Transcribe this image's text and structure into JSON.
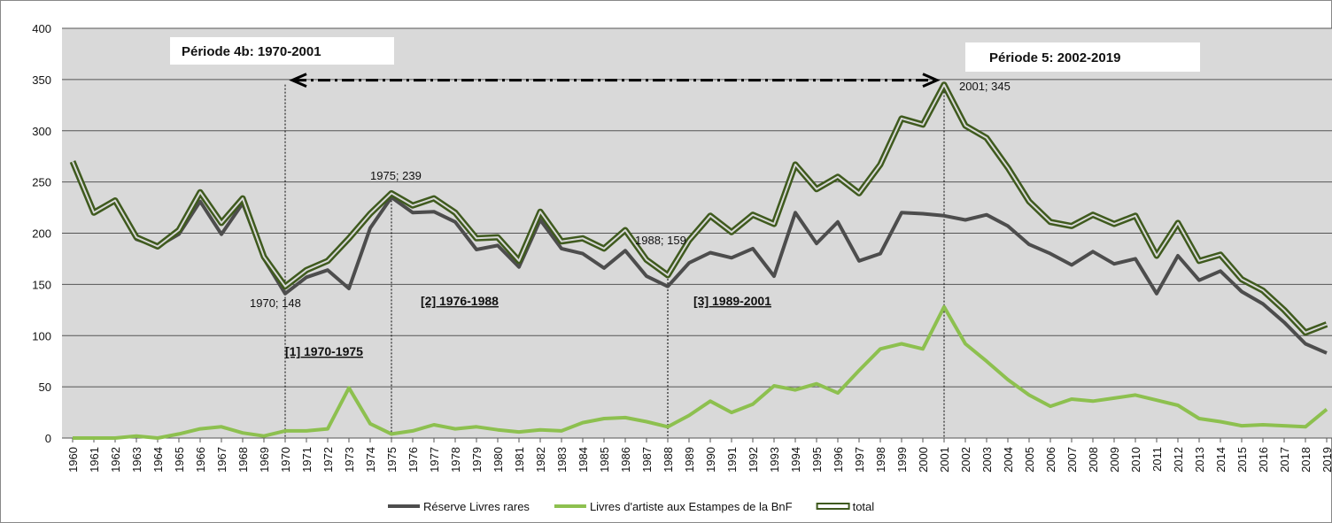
{
  "chart_data": {
    "type": "line",
    "categories": [
      "1960",
      "1961",
      "1962",
      "1963",
      "1964",
      "1965",
      "1966",
      "1967",
      "1968",
      "1969",
      "1970",
      "1971",
      "1972",
      "1973",
      "1974",
      "1975",
      "1976",
      "1977",
      "1978",
      "1979",
      "1980",
      "1981",
      "1982",
      "1983",
      "1984",
      "1985",
      "1986",
      "1987",
      "1988",
      "1989",
      "1990",
      "1991",
      "1992",
      "1993",
      "1994",
      "1995",
      "1996",
      "1997",
      "1998",
      "1999",
      "2000",
      "2001",
      "2002",
      "2003",
      "2004",
      "2005",
      "2006",
      "2007",
      "2008",
      "2009",
      "2010",
      "2011",
      "2012",
      "2013",
      "2014",
      "2015",
      "2016",
      "2017",
      "2018",
      "2019"
    ],
    "series": [
      {
        "name": "Réserve Livres rares",
        "color": "#4d4d4d",
        "values": [
          270,
          220,
          232,
          194,
          187,
          199,
          231,
          199,
          229,
          175,
          141,
          157,
          164,
          146,
          205,
          235,
          220,
          221,
          211,
          184,
          188,
          167,
          213,
          185,
          180,
          166,
          183,
          158,
          148,
          171,
          181,
          176,
          185,
          158,
          220,
          190,
          211,
          173,
          180,
          220,
          219,
          217,
          213,
          218,
          207,
          189,
          180,
          169,
          182,
          170,
          175,
          141,
          178,
          154,
          163,
          143,
          131,
          113,
          92,
          83
        ]
      },
      {
        "name": "Livres d'artiste aux Estampes de la BnF",
        "color": "#8dc04f",
        "values": [
          0,
          0,
          0,
          2,
          0,
          4,
          9,
          11,
          5,
          2,
          7,
          7,
          9,
          49,
          14,
          4,
          7,
          13,
          9,
          11,
          8,
          6,
          8,
          7,
          15,
          19,
          20,
          16,
          11,
          22,
          36,
          25,
          33,
          51,
          47,
          53,
          44,
          66,
          87,
          92,
          87,
          128,
          92,
          75,
          57,
          42,
          31,
          38,
          36,
          39,
          42,
          37,
          32,
          19,
          16,
          12,
          13,
          12,
          11,
          28
        ]
      },
      {
        "name": "total",
        "color": "#3f5a1e",
        "values": [
          270,
          220,
          232,
          196,
          187,
          203,
          240,
          210,
          234,
          177,
          148,
          164,
          173,
          195,
          219,
          239,
          227,
          234,
          220,
          195,
          196,
          173,
          221,
          192,
          195,
          185,
          203,
          174,
          159,
          193,
          217,
          201,
          218,
          209,
          267,
          243,
          255,
          239,
          267,
          312,
          306,
          345,
          305,
          293,
          264,
          231,
          211,
          207,
          218,
          209,
          217,
          178,
          210,
          173,
          179,
          155,
          144,
          125,
          103,
          111
        ]
      }
    ],
    "ylim": [
      0,
      400
    ],
    "yticks": [
      0,
      50,
      100,
      150,
      200,
      250,
      300,
      350,
      400
    ],
    "grid": true,
    "legend": "bottom",
    "annotations": [
      {
        "text": "Période 4b: 1970-2001"
      },
      {
        "text": "Période 5: 2002-2019"
      },
      {
        "text": "2001; 345"
      },
      {
        "text": "1975; 239"
      },
      {
        "text": "1988; 159"
      },
      {
        "text": "1970; 148"
      },
      {
        "text": "[1] 1970-1975"
      },
      {
        "text": "[2] 1976-1988"
      },
      {
        "text": "[3] 1989-2001"
      }
    ]
  }
}
